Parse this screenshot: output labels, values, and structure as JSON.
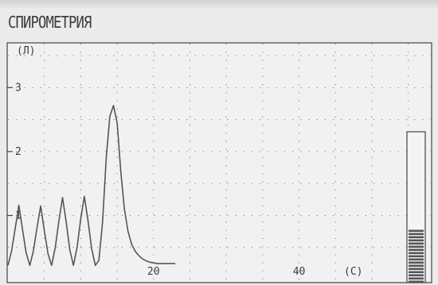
{
  "screen": {
    "title": "СПИРОМЕТРИЯ"
  },
  "chart_data": {
    "type": "line",
    "y_unit_label": "(Л)",
    "x_unit_label": "(С)",
    "y_ticks": [
      "1",
      "2",
      "3"
    ],
    "x_ticks": [
      "20",
      "40"
    ],
    "xlim": [
      0,
      58
    ],
    "ylim": [
      0,
      3.7
    ],
    "grid": true,
    "series": [
      {
        "x": [
          0.0,
          0.5,
          1.0,
          1.5,
          2.0,
          2.5,
          3.0,
          3.5,
          4.0,
          4.5,
          5.0,
          5.5,
          6.0,
          6.5,
          7.0,
          7.5,
          8.0,
          8.5,
          9.0,
          9.5,
          10.0,
          10.5,
          11.0,
          11.5,
          12.0,
          12.5,
          13.0,
          13.5,
          14.0,
          14.5,
          15.0,
          15.5,
          16.0,
          16.5,
          17.0,
          17.5,
          18.0,
          18.5,
          19.0,
          19.5,
          20.0,
          20.5,
          21.0,
          21.5,
          22.0,
          22.5,
          23.0
        ],
        "y": [
          0.22,
          0.45,
          0.8,
          1.16,
          0.78,
          0.42,
          0.22,
          0.45,
          0.82,
          1.15,
          0.76,
          0.4,
          0.22,
          0.5,
          0.92,
          1.28,
          0.9,
          0.46,
          0.22,
          0.5,
          0.95,
          1.3,
          0.92,
          0.48,
          0.22,
          0.3,
          0.9,
          1.9,
          2.55,
          2.72,
          2.45,
          1.7,
          1.1,
          0.75,
          0.55,
          0.44,
          0.37,
          0.32,
          0.29,
          0.27,
          0.26,
          0.25,
          0.25,
          0.25,
          0.25,
          0.25,
          0.25
        ]
      }
    ],
    "volume_indicator": {
      "level": 0.35
    }
  }
}
